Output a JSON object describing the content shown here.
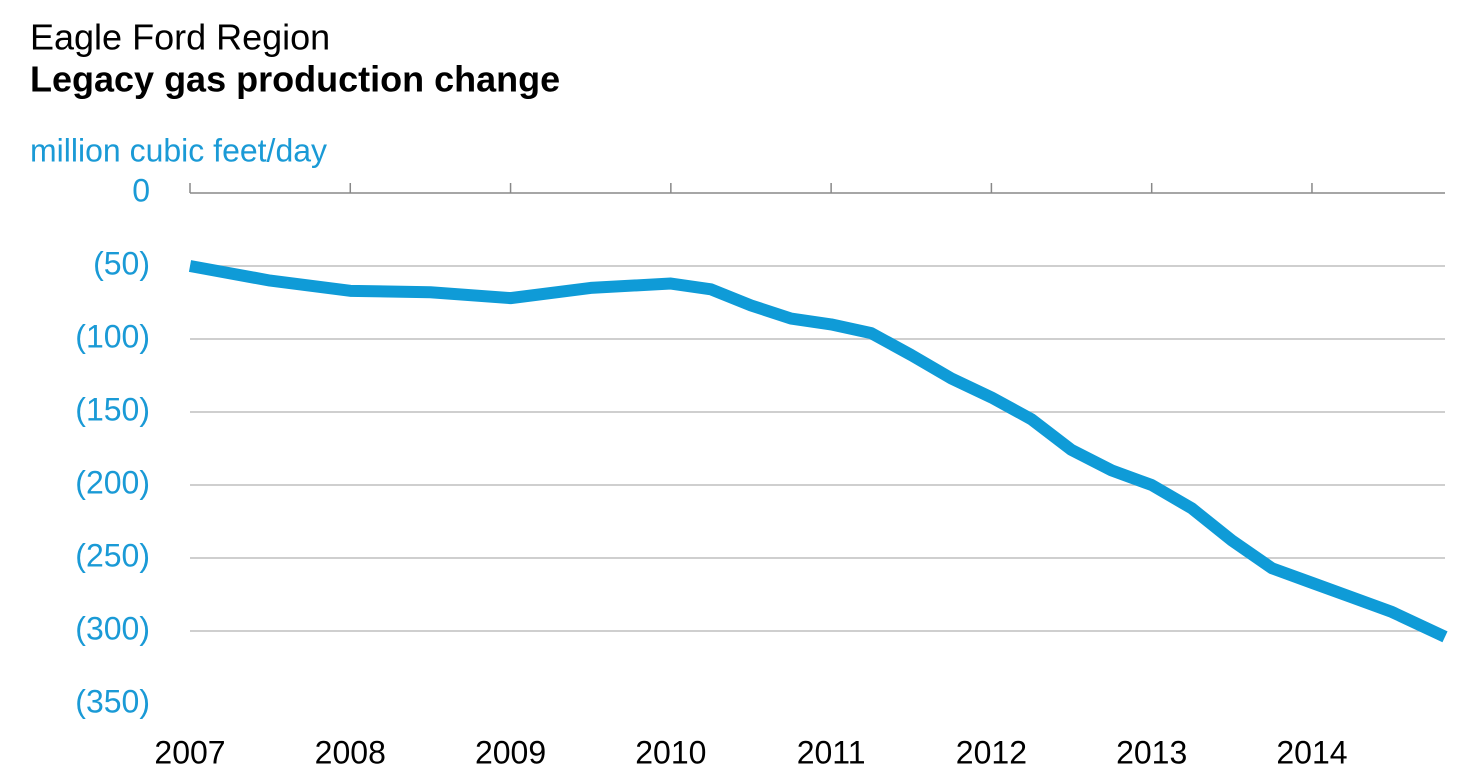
{
  "chart_data": {
    "type": "line",
    "title": "Eagle Ford Region",
    "subtitle": "Legacy gas production change",
    "y_axis_label": "million cubic feet/day",
    "x": [
      2007,
      2007.5,
      2008,
      2008.5,
      2009,
      2009.5,
      2010,
      2010.25,
      2010.5,
      2010.75,
      2011,
      2011.25,
      2011.5,
      2011.75,
      2012,
      2012.25,
      2012.5,
      2012.75,
      2013,
      2013.25,
      2013.5,
      2013.75,
      2014,
      2014.25,
      2014.5,
      2014.83
    ],
    "series": [
      {
        "color": "#0f9bd7",
        "values": [
          -50,
          -60,
          -67,
          -68,
          -72,
          -65,
          -62,
          -66,
          -77,
          -86,
          -90,
          -96,
          -111,
          -127,
          -140,
          -155,
          -176,
          -190,
          -200,
          -216,
          -238,
          -257,
          -267,
          -277,
          -287,
          -304
        ]
      }
    ],
    "xlim": [
      2007,
      2014.83
    ],
    "xticks": [
      2007,
      2008,
      2009,
      2010,
      2011,
      2012,
      2013,
      2014
    ],
    "ylim": [
      -350,
      0
    ],
    "yticks": [
      0,
      {
        "value": -50,
        "label": "(50)"
      },
      {
        "value": -100,
        "label": "(100)"
      },
      {
        "value": -150,
        "label": "(150)"
      },
      {
        "value": -200,
        "label": "(200)"
      },
      {
        "value": -250,
        "label": "(250)"
      },
      {
        "value": -300,
        "label": "(300)"
      },
      {
        "value": -350,
        "label": "(350)"
      }
    ],
    "grid": true
  }
}
